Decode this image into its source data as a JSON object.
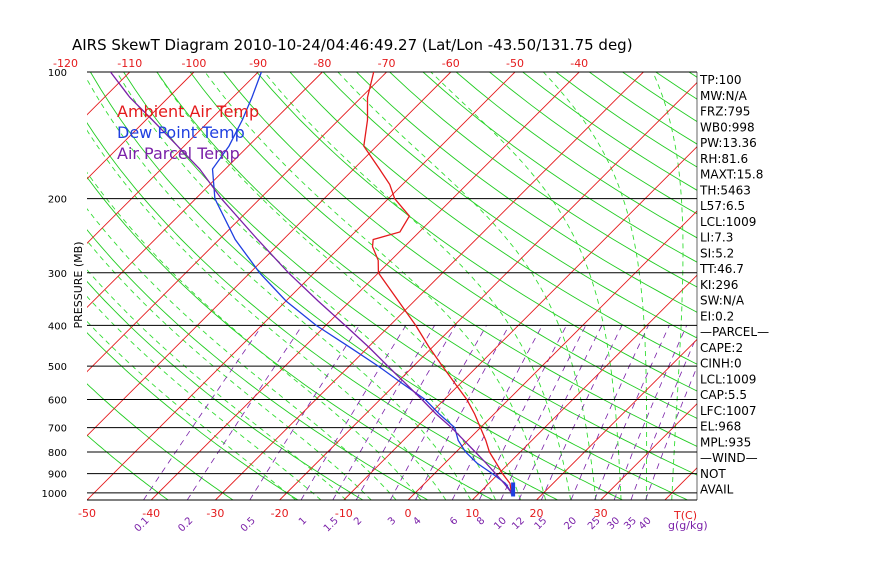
{
  "chart_data": {
    "type": "line",
    "title": "AIRS SkewT Diagram 2010-10-24/04:46:49.27 (Lat/Lon -43.50/131.75 deg)",
    "ylabel": "PRESSURE (MB)",
    "xlabel_bottom_unit": "T(C)",
    "mixing_unit": "g(g/kg)",
    "y_scale": "log",
    "ylim": [
      1040,
      100
    ],
    "xlim_bottom": [
      -50,
      45
    ],
    "pressure_ticks": [
      100,
      200,
      300,
      400,
      500,
      600,
      700,
      800,
      900,
      1000
    ],
    "bottom_temp_ticks": [
      -50,
      -40,
      -30,
      -20,
      -10,
      0,
      10,
      20,
      30
    ],
    "top_temp_ticks": [
      -120,
      -110,
      -100,
      -90,
      -80,
      -70,
      -60,
      -50,
      -40
    ],
    "mixing_ratio_ticks": [
      "0.1",
      "0.2",
      "0.5",
      "1",
      "1.5",
      "2",
      "3",
      "4",
      "6",
      "8",
      "10",
      "12",
      "15",
      "20",
      "25",
      "30",
      "35",
      "40"
    ],
    "legend": {
      "placement": "top-left",
      "entries": [
        {
          "label": "Ambient Air Temp",
          "color": "#e41a1c"
        },
        {
          "label": "Dew Point Temp",
          "color": "#1f3fe0"
        },
        {
          "label": "Air Parcel Temp",
          "color": "#7a20a8"
        }
      ]
    },
    "series": [
      {
        "name": "Ambient Air Temp",
        "color": "#e41a1c",
        "points": [
          {
            "p": 1009,
            "t": 15.5
          },
          {
            "p": 1000,
            "t": 15.0
          },
          {
            "p": 950,
            "t": 13.3
          },
          {
            "p": 900,
            "t": 10.6
          },
          {
            "p": 850,
            "t": 8.0
          },
          {
            "p": 800,
            "t": 5.2
          },
          {
            "p": 750,
            "t": 2.8
          },
          {
            "p": 700,
            "t": 0.0
          },
          {
            "p": 650,
            "t": -3.0
          },
          {
            "p": 600,
            "t": -6.5
          },
          {
            "p": 550,
            "t": -10.8
          },
          {
            "p": 500,
            "t": -15.5
          },
          {
            "p": 450,
            "t": -20.6
          },
          {
            "p": 400,
            "t": -26.0
          },
          {
            "p": 350,
            "t": -32.5
          },
          {
            "p": 300,
            "t": -40.0
          },
          {
            "p": 280,
            "t": -42.0
          },
          {
            "p": 260,
            "t": -45.0
          },
          {
            "p": 250,
            "t": -46.0
          },
          {
            "p": 240,
            "t": -43.0
          },
          {
            "p": 220,
            "t": -44.0
          },
          {
            "p": 200,
            "t": -49.0
          },
          {
            "p": 185,
            "t": -52.0
          },
          {
            "p": 170,
            "t": -56.0
          },
          {
            "p": 150,
            "t": -62.0
          },
          {
            "p": 130,
            "t": -65.5
          },
          {
            "p": 115,
            "t": -69.0
          },
          {
            "p": 100,
            "t": -72.0
          }
        ]
      },
      {
        "name": "Dew Point Temp",
        "color": "#1f3fe0",
        "points": [
          {
            "p": 1009,
            "t": 15.2
          },
          {
            "p": 1000,
            "t": 15.0
          },
          {
            "p": 950,
            "t": 12.6
          },
          {
            "p": 900,
            "t": 9.0
          },
          {
            "p": 850,
            "t": 5.0
          },
          {
            "p": 800,
            "t": 1.5
          },
          {
            "p": 750,
            "t": -1.5
          },
          {
            "p": 700,
            "t": -4.0
          },
          {
            "p": 650,
            "t": -8.5
          },
          {
            "p": 600,
            "t": -13.0
          },
          {
            "p": 550,
            "t": -19.0
          },
          {
            "p": 500,
            "t": -25.5
          },
          {
            "p": 450,
            "t": -33.0
          },
          {
            "p": 400,
            "t": -41.5
          },
          {
            "p": 350,
            "t": -50.0
          },
          {
            "p": 300,
            "t": -58.5
          },
          {
            "p": 250,
            "t": -67.5
          },
          {
            "p": 200,
            "t": -77.0
          },
          {
            "p": 170,
            "t": -82.0
          },
          {
            "p": 150,
            "t": -83.0
          },
          {
            "p": 130,
            "t": -85.0
          },
          {
            "p": 115,
            "t": -87.0
          },
          {
            "p": 100,
            "t": -89.5
          }
        ]
      },
      {
        "name": "Air Parcel Temp",
        "color": "#7a20a8",
        "points": [
          {
            "p": 1009,
            "t": 15.5
          },
          {
            "p": 1000,
            "t": 15.0
          },
          {
            "p": 950,
            "t": 12.4
          },
          {
            "p": 900,
            "t": 9.5
          },
          {
            "p": 850,
            "t": 6.4
          },
          {
            "p": 800,
            "t": 3.0
          },
          {
            "p": 750,
            "t": -0.6
          },
          {
            "p": 700,
            "t": -4.5
          },
          {
            "p": 650,
            "t": -9.0
          },
          {
            "p": 600,
            "t": -13.5
          },
          {
            "p": 550,
            "t": -18.5
          },
          {
            "p": 500,
            "t": -24.0
          },
          {
            "p": 450,
            "t": -30.0
          },
          {
            "p": 400,
            "t": -37.0
          },
          {
            "p": 350,
            "t": -45.0
          },
          {
            "p": 300,
            "t": -54.0
          },
          {
            "p": 250,
            "t": -64.0
          },
          {
            "p": 200,
            "t": -76.0
          },
          {
            "p": 170,
            "t": -84.0
          },
          {
            "p": 150,
            "t": -91.0
          },
          {
            "p": 130,
            "t": -99.0
          },
          {
            "p": 115,
            "t": -106.0
          },
          {
            "p": 100,
            "t": -113.0
          }
        ]
      }
    ],
    "indices": [
      "TP:100",
      "MW:N/A",
      "FRZ:795",
      "WB0:998",
      "PW:13.36",
      "RH:81.6",
      "MAXT:15.8",
      "TH:5463",
      "L57:6.5",
      "LCL:1009",
      "LI:7.3",
      "SI:5.2",
      "TT:46.7",
      "KI:296",
      "SW:N/A",
      "EI:0.2",
      "—PARCEL—",
      "CAPE:2",
      "CINH:0",
      "LCL:1009",
      "CAP:5.5",
      "LFC:1007",
      "EL:968",
      "MPL:935",
      "—WIND—",
      "NOT",
      "AVAIL"
    ],
    "grid": true,
    "colors": {
      "isotherm": "#e41a1c",
      "dry_adiabat": "#22cc22",
      "moist_adiabat": "#33dd33",
      "mixing_ratio": "#7a20a8",
      "isobar": "#000000",
      "axis_text": "#e41a1c",
      "mixing_text": "#7a20a8"
    }
  }
}
